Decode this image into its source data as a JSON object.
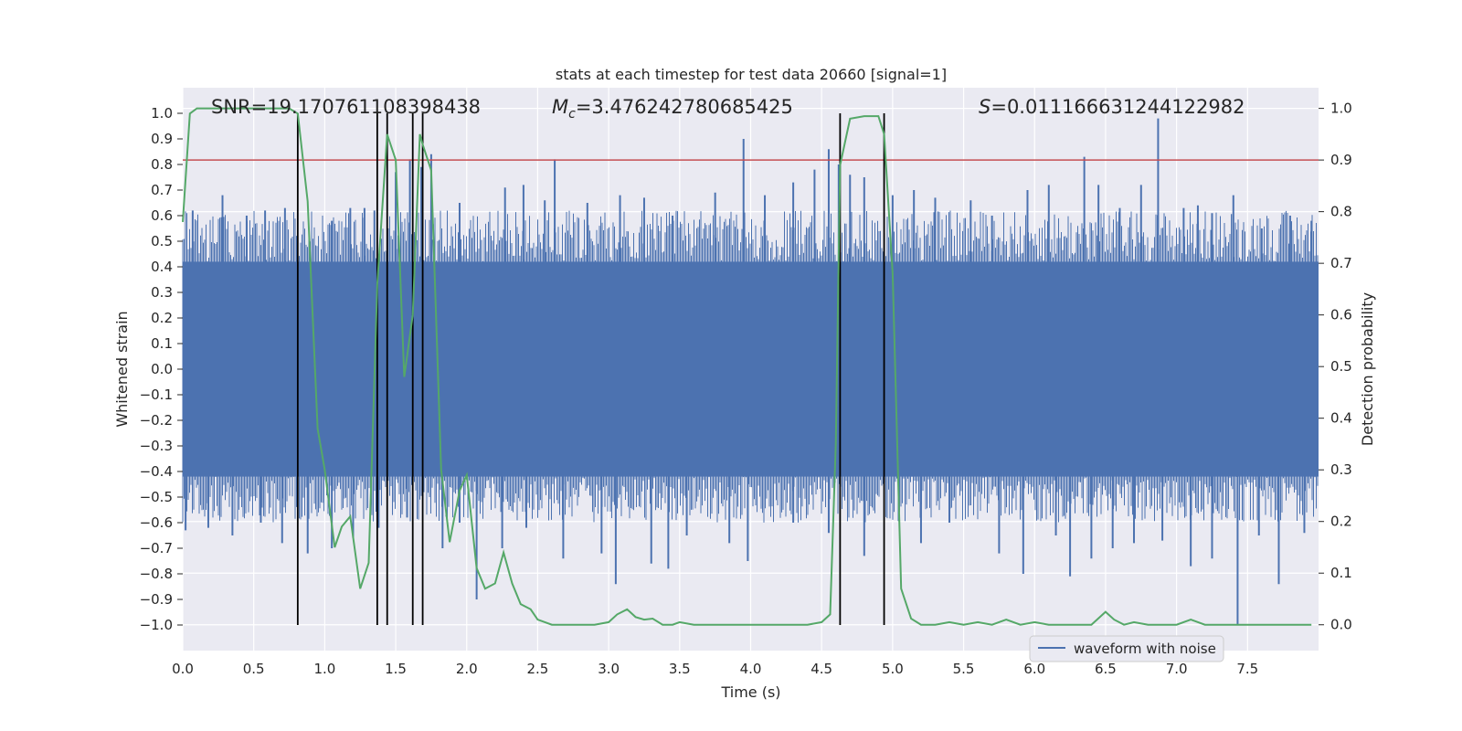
{
  "chart_data": {
    "type": "line",
    "title": "stats at each timestep for test data 20660 [signal=1]",
    "xlabel": "Time (s)",
    "ylabel": "Whitened strain",
    "y2label": "Detection probability",
    "xlim": [
      0.0,
      8.0
    ],
    "ylim": [
      -1.1,
      1.1
    ],
    "y2lim": [
      -0.05,
      1.04
    ],
    "xticks": [
      "0.0",
      "0.5",
      "1.0",
      "1.5",
      "2.0",
      "2.5",
      "3.0",
      "3.5",
      "4.0",
      "4.5",
      "5.0",
      "5.5",
      "6.0",
      "6.5",
      "7.0",
      "7.5"
    ],
    "yticks": [
      "1.0",
      "0.9",
      "0.8",
      "0.7",
      "0.6",
      "0.5",
      "0.4",
      "0.3",
      "0.2",
      "0.1",
      "0.0",
      "−0.1",
      "−0.2",
      "−0.3",
      "−0.4",
      "−0.5",
      "−0.6",
      "−0.7",
      "−0.8",
      "−0.9",
      "−1.0"
    ],
    "y2ticks": [
      "1.0",
      "0.9",
      "0.8",
      "0.7",
      "0.6",
      "0.5",
      "0.4",
      "0.3",
      "0.2",
      "0.1",
      "0.0"
    ],
    "annotations": {
      "snr": "SNR=19.170761108398438",
      "mc_symbol": "M",
      "mc_sub": "c",
      "mc_value": "=3.476242780685425",
      "s_symbol": "S",
      "s_value": "=0.011166631244122982"
    },
    "legend": {
      "label": "waveform with noise",
      "position": "lower-right"
    },
    "threshold": {
      "value": 0.9,
      "axis": "y2",
      "color": "#c44e52"
    },
    "vlines": [
      0.81,
      1.37,
      1.44,
      1.62,
      1.69,
      4.63,
      4.94
    ],
    "waveform": {
      "name": "waveform with noise",
      "color": "#4c72b0",
      "band_low": -0.42,
      "band_high": 0.42,
      "spikes_up": [
        [
          0.07,
          0.62
        ],
        [
          0.28,
          0.68
        ],
        [
          0.45,
          0.6
        ],
        [
          0.58,
          0.62
        ],
        [
          0.72,
          0.63
        ],
        [
          1.05,
          0.58
        ],
        [
          1.18,
          0.63
        ],
        [
          1.28,
          0.63
        ],
        [
          1.35,
          0.62
        ],
        [
          1.5,
          0.77
        ],
        [
          1.6,
          0.82
        ],
        [
          1.68,
          0.79
        ],
        [
          1.75,
          0.84
        ],
        [
          1.95,
          0.65
        ],
        [
          2.27,
          0.71
        ],
        [
          2.4,
          0.72
        ],
        [
          2.55,
          0.66
        ],
        [
          2.62,
          0.82
        ],
        [
          2.85,
          0.65
        ],
        [
          3.08,
          0.68
        ],
        [
          3.25,
          0.67
        ],
        [
          3.45,
          0.6
        ],
        [
          3.75,
          0.69
        ],
        [
          3.95,
          0.9
        ],
        [
          4.1,
          0.68
        ],
        [
          4.3,
          0.73
        ],
        [
          4.45,
          0.78
        ],
        [
          4.55,
          0.86
        ],
        [
          4.62,
          0.8
        ],
        [
          4.7,
          0.76
        ],
        [
          4.8,
          0.75
        ],
        [
          5.0,
          0.68
        ],
        [
          5.15,
          0.7
        ],
        [
          5.3,
          0.67
        ],
        [
          5.55,
          0.66
        ],
        [
          5.7,
          0.6
        ],
        [
          5.95,
          0.7
        ],
        [
          6.1,
          0.72
        ],
        [
          6.35,
          0.83
        ],
        [
          6.45,
          0.72
        ],
        [
          6.6,
          0.63
        ],
        [
          6.75,
          0.72
        ],
        [
          6.87,
          0.98
        ],
        [
          7.05,
          0.63
        ],
        [
          7.15,
          0.64
        ],
        [
          7.25,
          0.61
        ],
        [
          7.4,
          0.68
        ],
        [
          7.6,
          0.55
        ],
        [
          7.8,
          0.6
        ],
        [
          7.95,
          0.58
        ]
      ],
      "spikes_down": [
        [
          0.02,
          -0.63
        ],
        [
          0.18,
          -0.62
        ],
        [
          0.35,
          -0.65
        ],
        [
          0.55,
          -0.6
        ],
        [
          0.7,
          -0.68
        ],
        [
          0.88,
          -0.72
        ],
        [
          1.05,
          -0.7
        ],
        [
          1.2,
          -0.66
        ],
        [
          1.38,
          -0.62
        ],
        [
          1.58,
          -0.58
        ],
        [
          1.83,
          -0.7
        ],
        [
          1.95,
          -0.6
        ],
        [
          2.07,
          -0.9
        ],
        [
          2.25,
          -0.7
        ],
        [
          2.42,
          -0.62
        ],
        [
          2.68,
          -0.74
        ],
        [
          2.95,
          -0.72
        ],
        [
          3.05,
          -0.84
        ],
        [
          3.3,
          -0.76
        ],
        [
          3.42,
          -0.78
        ],
        [
          3.55,
          -0.65
        ],
        [
          3.85,
          -0.68
        ],
        [
          3.98,
          -0.75
        ],
        [
          4.3,
          -0.6
        ],
        [
          4.55,
          -0.64
        ],
        [
          4.8,
          -0.73
        ],
        [
          5.2,
          -0.68
        ],
        [
          5.4,
          -0.6
        ],
        [
          5.75,
          -0.72
        ],
        [
          5.92,
          -0.8
        ],
        [
          6.15,
          -0.65
        ],
        [
          6.25,
          -0.81
        ],
        [
          6.4,
          -0.74
        ],
        [
          6.55,
          -0.7
        ],
        [
          6.7,
          -0.68
        ],
        [
          6.9,
          -0.67
        ],
        [
          7.1,
          -0.77
        ],
        [
          7.25,
          -0.74
        ],
        [
          7.43,
          -1.0
        ],
        [
          7.58,
          -0.65
        ],
        [
          7.72,
          -0.84
        ],
        [
          7.9,
          -0.64
        ]
      ]
    },
    "detection_probability": {
      "name": "detection probability",
      "color": "#55a868",
      "x": [
        0.0,
        0.05,
        0.1,
        0.15,
        0.2,
        0.3,
        0.4,
        0.5,
        0.6,
        0.7,
        0.75,
        0.81,
        0.88,
        0.95,
        1.0,
        1.07,
        1.12,
        1.18,
        1.25,
        1.31,
        1.37,
        1.44,
        1.5,
        1.56,
        1.62,
        1.67,
        1.69,
        1.75,
        1.82,
        1.88,
        1.95,
        2.0,
        2.07,
        2.13,
        2.2,
        2.26,
        2.32,
        2.38,
        2.45,
        2.5,
        2.6,
        2.7,
        2.8,
        2.9,
        3.0,
        3.06,
        3.13,
        3.19,
        3.25,
        3.31,
        3.38,
        3.45,
        3.5,
        3.6,
        3.7,
        3.8,
        3.9,
        4.0,
        4.2,
        4.4,
        4.5,
        4.56,
        4.6,
        4.63,
        4.7,
        4.8,
        4.9,
        4.94,
        5.0,
        5.06,
        5.13,
        5.2,
        5.3,
        5.4,
        5.5,
        5.6,
        5.7,
        5.8,
        5.9,
        6.0,
        6.1,
        6.2,
        6.3,
        6.4,
        6.5,
        6.56,
        6.63,
        6.7,
        6.8,
        6.9,
        7.0,
        7.1,
        7.2,
        7.3,
        7.4,
        7.5,
        7.6,
        7.7,
        7.8,
        7.9,
        7.95
      ],
      "y": [
        0.78,
        0.99,
        1.0,
        1.0,
        1.0,
        1.0,
        1.0,
        1.0,
        1.0,
        1.0,
        1.0,
        0.99,
        0.82,
        0.38,
        0.3,
        0.15,
        0.19,
        0.21,
        0.07,
        0.12,
        0.66,
        0.95,
        0.9,
        0.48,
        0.6,
        0.95,
        0.93,
        0.88,
        0.3,
        0.16,
        0.26,
        0.29,
        0.11,
        0.07,
        0.08,
        0.14,
        0.08,
        0.04,
        0.03,
        0.01,
        0.0,
        0.0,
        0.0,
        0.0,
        0.005,
        0.02,
        0.03,
        0.015,
        0.01,
        0.012,
        0.0,
        0.0,
        0.005,
        0.0,
        0.0,
        0.0,
        0.0,
        0.0,
        0.0,
        0.0,
        0.005,
        0.02,
        0.35,
        0.89,
        0.98,
        0.985,
        0.985,
        0.95,
        0.68,
        0.07,
        0.012,
        0.0,
        0.0,
        0.005,
        0.0,
        0.005,
        0.0,
        0.01,
        0.0,
        0.005,
        0.0,
        0.0,
        0.0,
        0.0,
        0.025,
        0.01,
        0.0,
        0.005,
        0.0,
        0.0,
        0.0,
        0.01,
        0.0,
        0.0,
        0.0,
        0.0,
        0.0,
        0.0,
        0.0,
        0.0,
        0.0
      ]
    }
  }
}
